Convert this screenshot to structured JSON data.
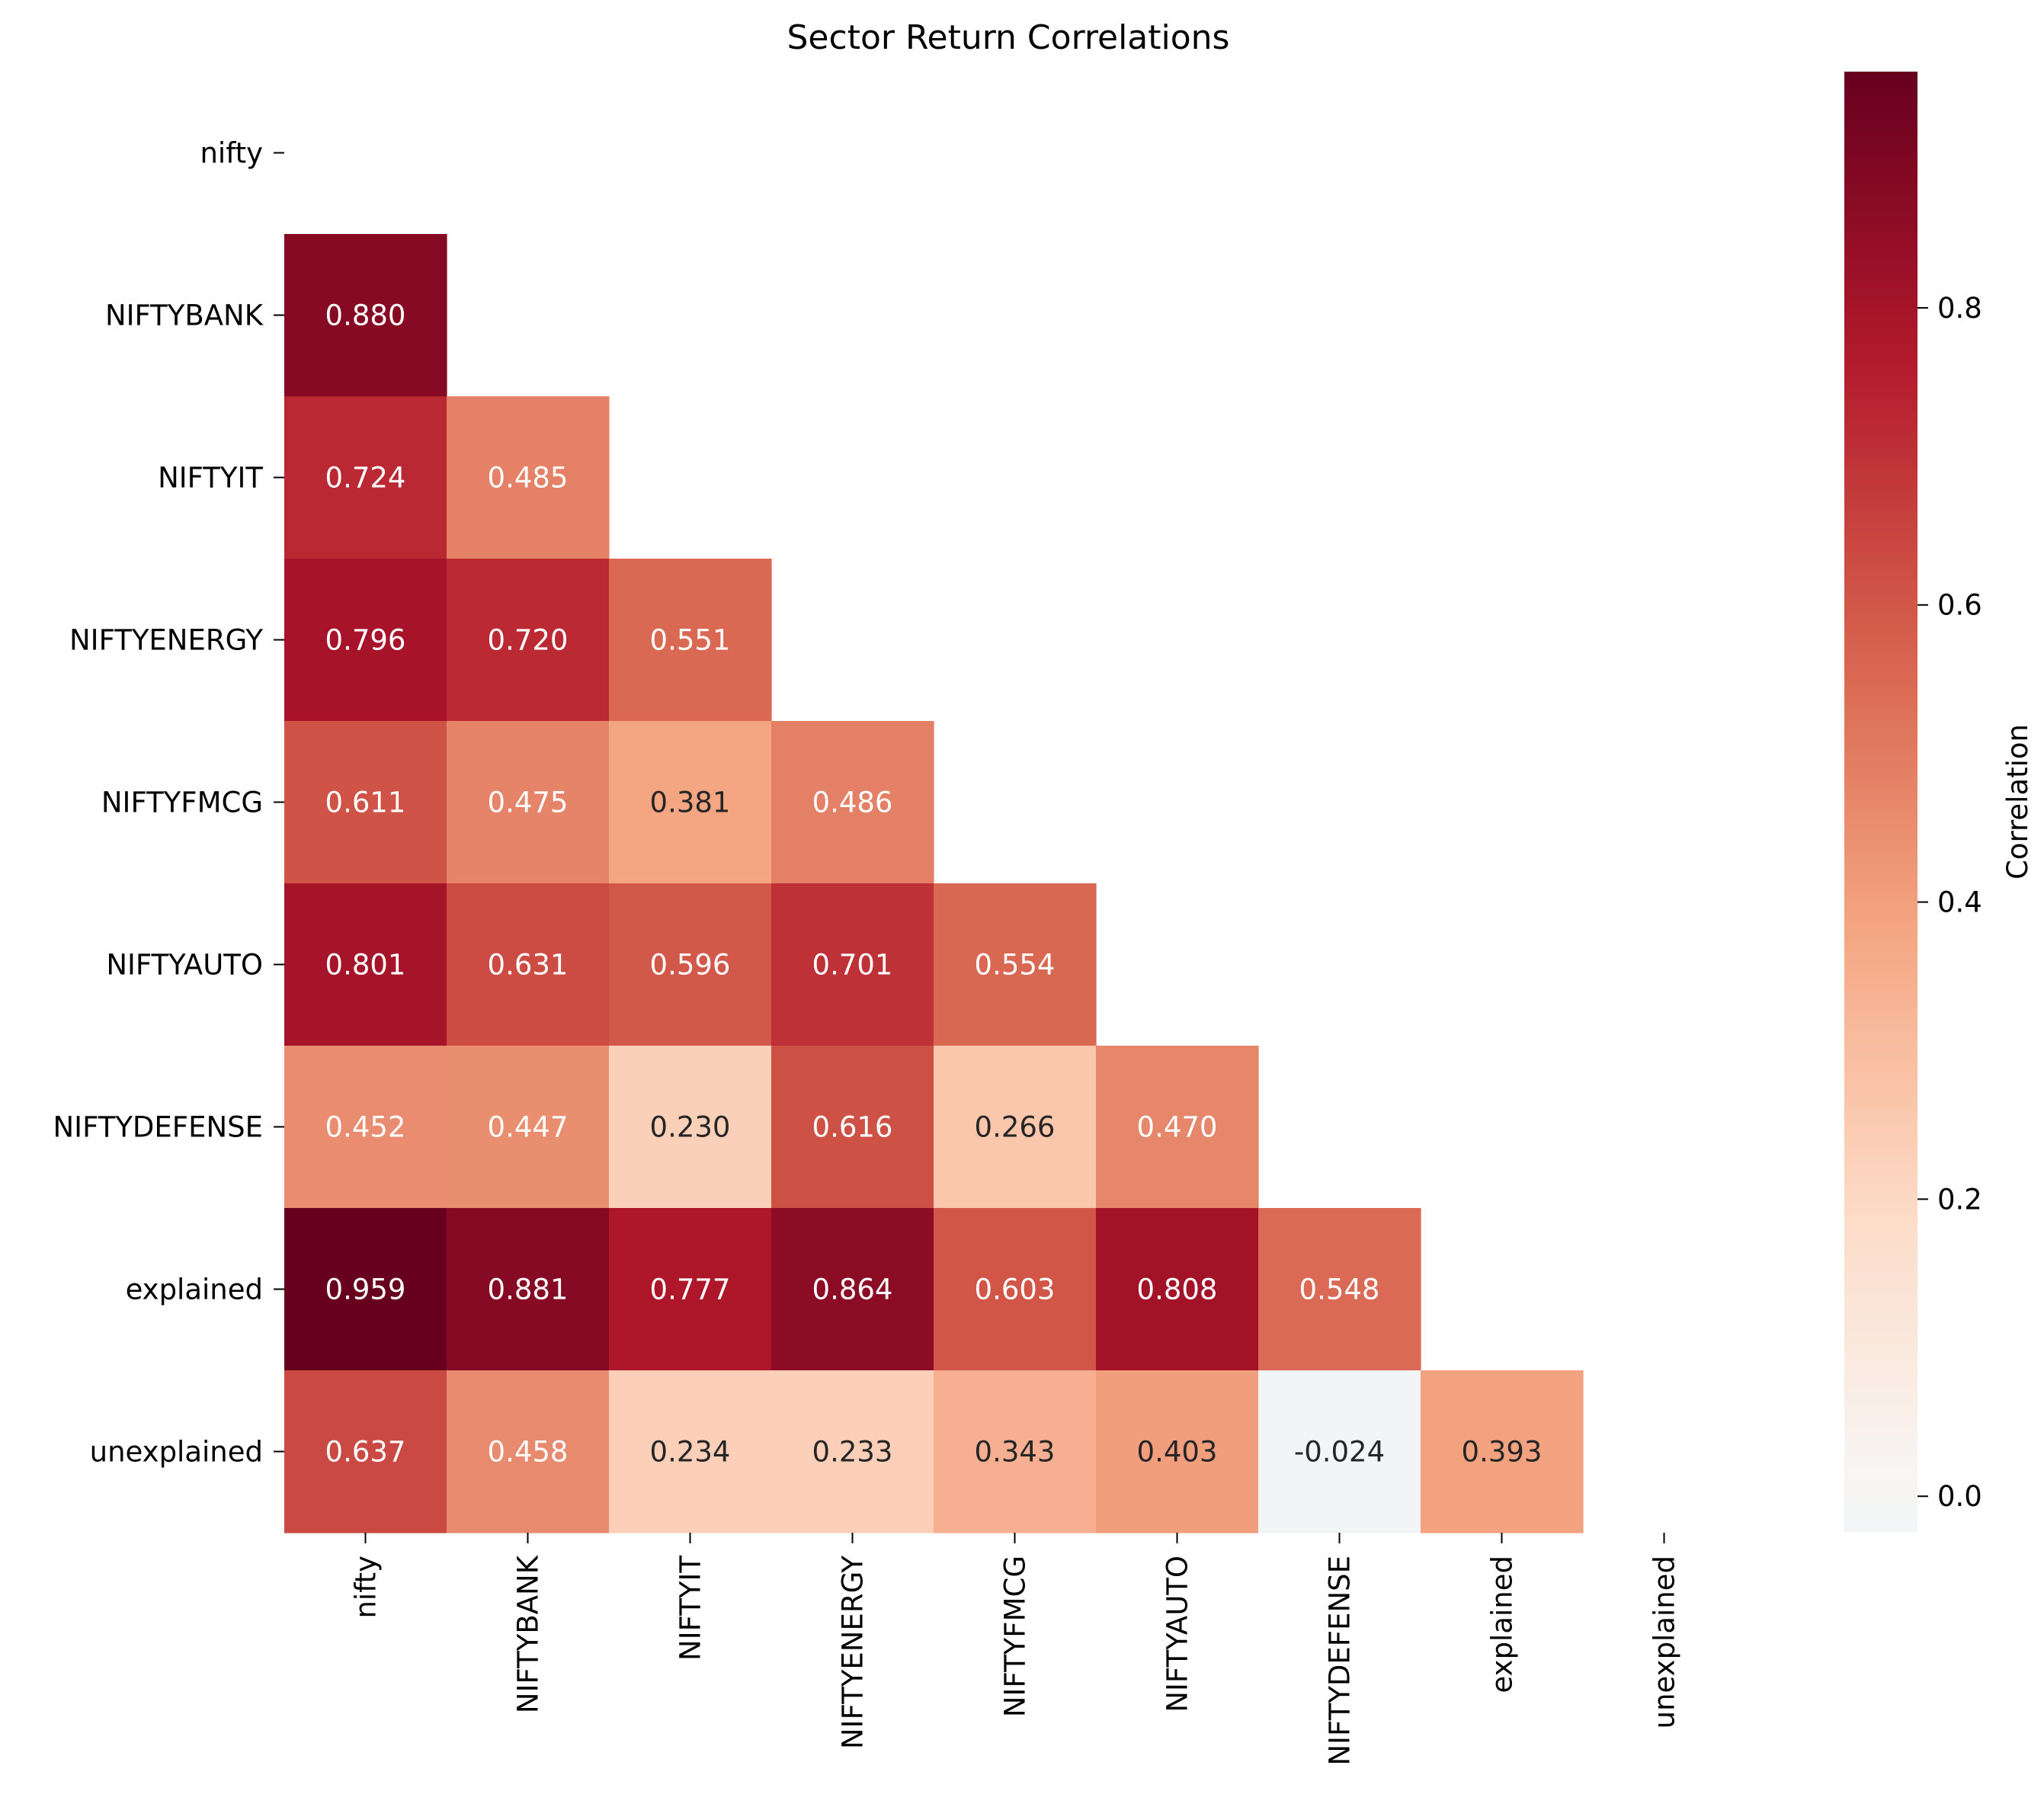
{
  "chart_data": {
    "type": "heatmap",
    "title": "Sector Return Correlations",
    "xlabel": "",
    "ylabel": "",
    "labels": [
      "nifty",
      "NIFTYBANK",
      "NIFTYIT",
      "NIFTYENERGY",
      "NIFTYFMCG",
      "NIFTYAUTO",
      "NIFTYDEFENSE",
      "explained",
      "unexplained"
    ],
    "mask": "upper-triangle-including-diagonal",
    "matrix": [
      [
        null,
        null,
        null,
        null,
        null,
        null,
        null,
        null,
        null
      ],
      [
        0.88,
        null,
        null,
        null,
        null,
        null,
        null,
        null,
        null
      ],
      [
        0.724,
        0.485,
        null,
        null,
        null,
        null,
        null,
        null,
        null
      ],
      [
        0.796,
        0.72,
        0.551,
        null,
        null,
        null,
        null,
        null,
        null
      ],
      [
        0.611,
        0.475,
        0.381,
        0.486,
        null,
        null,
        null,
        null,
        null
      ],
      [
        0.801,
        0.631,
        0.596,
        0.701,
        0.554,
        null,
        null,
        null,
        null
      ],
      [
        0.452,
        0.447,
        0.23,
        0.616,
        0.266,
        0.47,
        null,
        null,
        null
      ],
      [
        0.959,
        0.881,
        0.777,
        0.864,
        0.603,
        0.808,
        0.548,
        null,
        null
      ],
      [
        0.637,
        0.458,
        0.234,
        0.233,
        0.343,
        0.403,
        -0.024,
        0.393,
        null
      ]
    ],
    "cell_text": [
      [
        null,
        null,
        null,
        null,
        null,
        null,
        null,
        null,
        null
      ],
      [
        "0.880",
        null,
        null,
        null,
        null,
        null,
        null,
        null,
        null
      ],
      [
        "0.724",
        "0.485",
        null,
        null,
        null,
        null,
        null,
        null,
        null
      ],
      [
        "0.796",
        "0.720",
        "0.551",
        null,
        null,
        null,
        null,
        null,
        null
      ],
      [
        "0.611",
        "0.475",
        "0.381",
        "0.486",
        null,
        null,
        null,
        null,
        null
      ],
      [
        "0.801",
        "0.631",
        "0.596",
        "0.701",
        "0.554",
        null,
        null,
        null,
        null
      ],
      [
        "0.452",
        "0.447",
        "0.230",
        "0.616",
        "0.266",
        "0.470",
        null,
        null,
        null
      ],
      [
        "0.959",
        "0.881",
        "0.777",
        "0.864",
        "0.603",
        "0.808",
        "0.548",
        null,
        null
      ],
      [
        "0.637",
        "0.458",
        "0.234",
        "0.233",
        "0.343",
        "0.403",
        "-0.024",
        "0.393",
        null
      ]
    ],
    "colormap": "RdBu_r",
    "center": 0,
    "vmin": -0.024,
    "vmax": 0.959,
    "colorbar": {
      "label": "Correlation",
      "ticks": [
        0.0,
        0.2,
        0.4,
        0.6,
        0.8
      ],
      "tick_labels": [
        "0.0",
        "0.2",
        "0.4",
        "0.6",
        "0.8"
      ],
      "placement": "right"
    },
    "grid": false
  }
}
